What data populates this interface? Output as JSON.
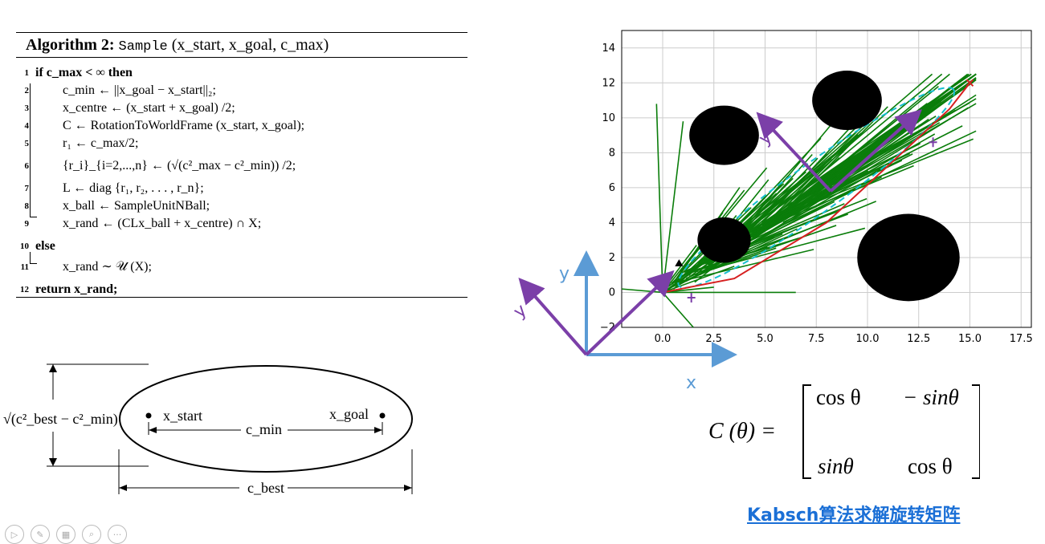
{
  "algorithm": {
    "title_bold": "Algorithm 2:",
    "title_fn": "Sample",
    "title_args": "(x_start, x_goal, c_max)",
    "lines": [
      {
        "n": "1",
        "text": "if c_max < ∞ then"
      },
      {
        "n": "2",
        "text": "c_min ← ||x_goal − x_start||₂;"
      },
      {
        "n": "3",
        "text": "x_centre ← (x_start + x_goal) /2;"
      },
      {
        "n": "4",
        "text": "C ← RotationToWorldFrame (x_start, x_goal);"
      },
      {
        "n": "5",
        "text": "r₁ ← c_max/2;"
      },
      {
        "n": "6",
        "text": "{r_i}_{i=2,...,n} ← (√(c²_max − c²_min)) /2;"
      },
      {
        "n": "7",
        "text": "L ← diag {r₁, r₂, . . . , r_n};"
      },
      {
        "n": "8",
        "text": "x_ball ← SampleUnitNBall;"
      },
      {
        "n": "9",
        "text": "x_rand ← (CLx_ball + x_centre) ∩ X;"
      },
      {
        "n": "10",
        "text": "else"
      },
      {
        "n": "11",
        "text": "x_rand ∼ 𝒰 (X);"
      },
      {
        "n": "12",
        "text": "return x_rand;"
      }
    ]
  },
  "ellipse_diagram": {
    "height_label": "√(c²_best − c²_min)",
    "start_label": "x_start",
    "goal_label": "x_goal",
    "cmin_label": "c_min",
    "cbest_label": "c_best"
  },
  "chart_data": {
    "type": "scatter",
    "x_ticks": [
      "0.0",
      "2.5",
      "5.0",
      "7.5",
      "10.0",
      "12.5",
      "15.0",
      "17.5"
    ],
    "y_ticks": [
      "−2",
      "0",
      "2",
      "4",
      "6",
      "8",
      "10",
      "12",
      "14"
    ],
    "xlim": [
      -2.0,
      18.0
    ],
    "ylim": [
      -2.0,
      15.0
    ],
    "grid": true,
    "obstacles": [
      {
        "cx": 3.0,
        "cy": 9.0,
        "r": 1.7
      },
      {
        "cx": 9.0,
        "cy": 11.0,
        "r": 1.7
      },
      {
        "cx": 3.0,
        "cy": 3.0,
        "r": 1.3
      },
      {
        "cx": 12.0,
        "cy": 2.0,
        "r": 2.5
      }
    ],
    "start": [
      0.0,
      0.0
    ],
    "goal": [
      15.0,
      12.0
    ],
    "best_path": [
      [
        0.0,
        0.0
      ],
      [
        3.5,
        0.8
      ],
      [
        8.0,
        4.0
      ],
      [
        14.0,
        10.5
      ],
      [
        15.0,
        12.0
      ]
    ],
    "colors": {
      "tree": "#0a7d0a",
      "path": "#d62020",
      "ellipse": "#17becf",
      "frame": "#7b3fa8",
      "world": "#5b9bd5"
    }
  },
  "frames": {
    "world_x": "x",
    "world_y": "y",
    "local_y1": "y",
    "local_y2": "y"
  },
  "matrix": {
    "lhs": "C (θ) =",
    "a11": "cos θ",
    "a12": "− sinθ",
    "a21": "sinθ",
    "a22": "cos θ"
  },
  "caption": "Kabsch算法求解旋转矩阵",
  "toolbar": [
    "▷",
    "✎",
    "▦",
    "⌕",
    "···"
  ]
}
